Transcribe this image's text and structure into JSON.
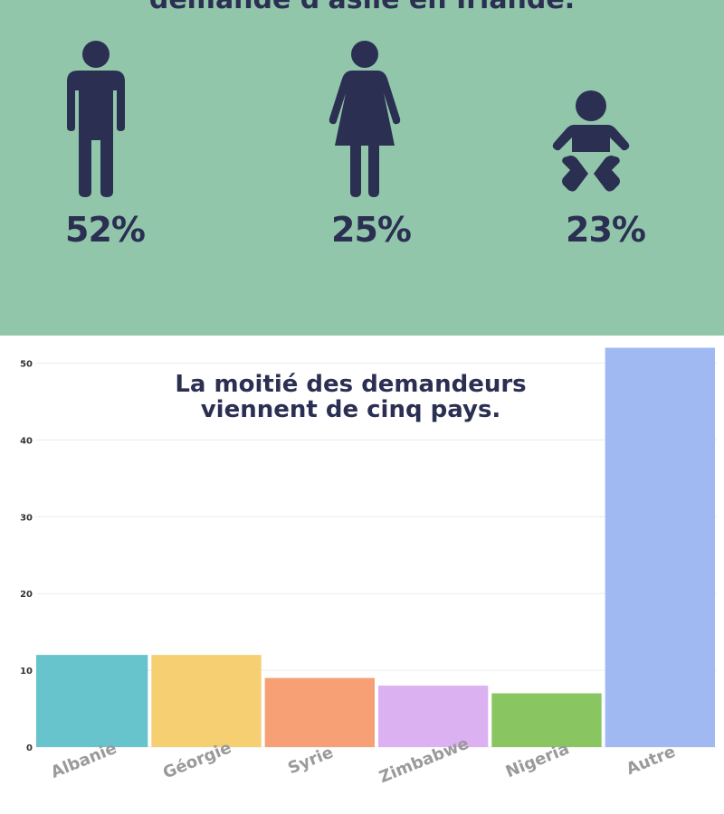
{
  "infographic": {
    "title_fragment": "demande d'asile en Irlande.",
    "groups": [
      {
        "icon": "man-icon",
        "percent_label": "52%",
        "percent": 52
      },
      {
        "icon": "woman-icon",
        "percent_label": "25%",
        "percent": 25
      },
      {
        "icon": "baby-icon",
        "percent_label": "23%",
        "percent": 23
      }
    ]
  },
  "colors": {
    "panel_bg": "#92c6ab",
    "figure": "#2b2f52",
    "title": "#2b2f52",
    "axis_label": "#9a9a9a",
    "grid": "#ececec"
  },
  "chart_data": {
    "type": "bar",
    "title": "La moitié des demandeurs viennent de cinq pays.",
    "title_lines": [
      "La moitié des demandeurs",
      "viennent de cinq pays."
    ],
    "categories": [
      "Albanie",
      "Géorgie",
      "Syrie",
      "Zimbabwe",
      "Nigeria",
      "Autre"
    ],
    "values": [
      12,
      12,
      9,
      8,
      7,
      52
    ],
    "bar_colors": [
      "#67c4cd",
      "#f5cf72",
      "#f7a075",
      "#dcb1f1",
      "#89c662",
      "#a0b9f3"
    ],
    "xlabel": "",
    "ylabel": "",
    "ylim": [
      0,
      53
    ],
    "yticks": [
      0,
      10,
      20,
      30,
      40,
      50
    ],
    "grid": true,
    "legend": "none"
  }
}
